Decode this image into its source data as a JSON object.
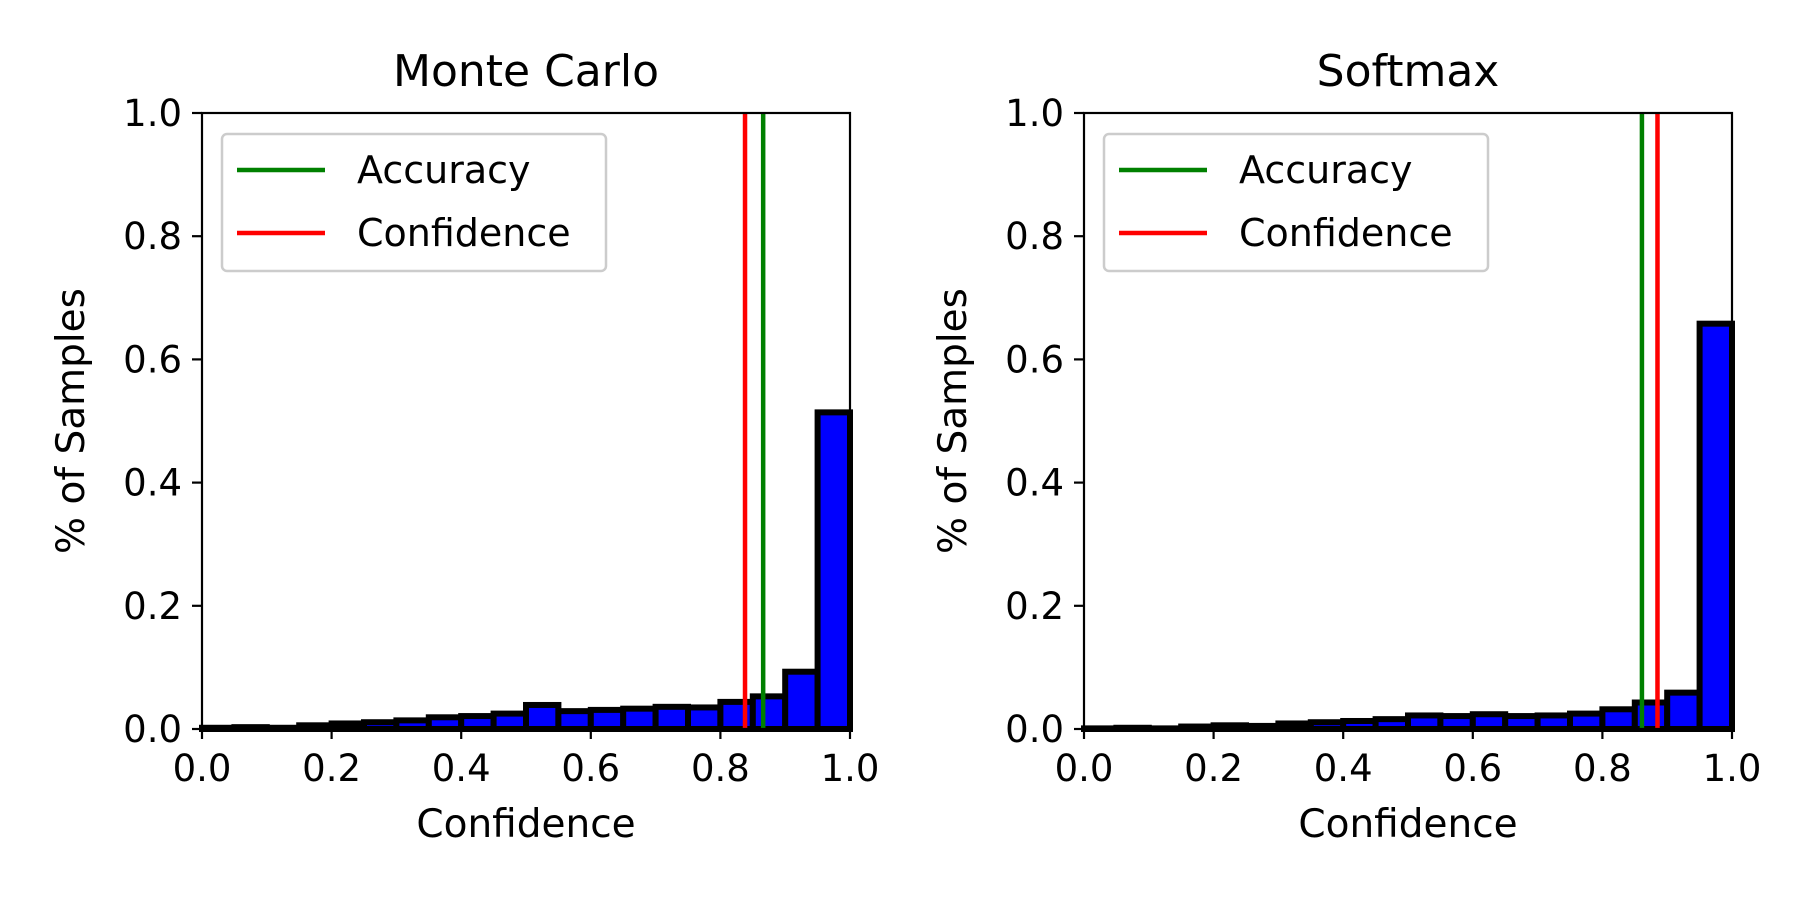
{
  "chart_data": [
    {
      "type": "bar",
      "title": "Monte Carlo",
      "xlabel": "Confidence",
      "ylabel": "% of Samples",
      "xlim": [
        0.0,
        1.0
      ],
      "ylim": [
        0.0,
        1.0
      ],
      "xticks": [
        "0.0",
        "0.2",
        "0.4",
        "0.6",
        "0.8",
        "1.0"
      ],
      "yticks": [
        "0.0",
        "0.2",
        "0.4",
        "0.6",
        "0.8",
        "1.0"
      ],
      "bin_edges": [
        0.0,
        0.05,
        0.1,
        0.15,
        0.2,
        0.25,
        0.3,
        0.35,
        0.4,
        0.45,
        0.5,
        0.55,
        0.6,
        0.65,
        0.7,
        0.75,
        0.8,
        0.85,
        0.9,
        0.95,
        1.0
      ],
      "values": [
        0.002,
        0.003,
        0.002,
        0.006,
        0.009,
        0.011,
        0.014,
        0.019,
        0.021,
        0.025,
        0.039,
        0.029,
        0.031,
        0.033,
        0.036,
        0.035,
        0.044,
        0.053,
        0.093,
        0.514
      ],
      "bar_color": "#0000ff",
      "edge_color": "#000000",
      "lines": [
        {
          "name": "Accuracy",
          "x": 0.866,
          "color": "#008000"
        },
        {
          "name": "Confidence",
          "x": 0.838,
          "color": "#ff0000"
        }
      ],
      "legend": {
        "position": "upper-left",
        "entries": [
          {
            "label": "Accuracy",
            "color": "#008000"
          },
          {
            "label": "Confidence",
            "color": "#ff0000"
          }
        ]
      },
      "grid": false
    },
    {
      "type": "bar",
      "title": "Softmax",
      "xlabel": "Confidence",
      "ylabel": "% of Samples",
      "xlim": [
        0.0,
        1.0
      ],
      "ylim": [
        0.0,
        1.0
      ],
      "xticks": [
        "0.0",
        "0.2",
        "0.4",
        "0.6",
        "0.8",
        "1.0"
      ],
      "yticks": [
        "0.0",
        "0.2",
        "0.4",
        "0.6",
        "0.8",
        "1.0"
      ],
      "bin_edges": [
        0.0,
        0.05,
        0.1,
        0.15,
        0.2,
        0.25,
        0.3,
        0.35,
        0.4,
        0.45,
        0.5,
        0.55,
        0.6,
        0.65,
        0.7,
        0.75,
        0.8,
        0.85,
        0.9,
        0.95,
        1.0
      ],
      "values": [
        0.001,
        0.002,
        0.001,
        0.004,
        0.006,
        0.005,
        0.009,
        0.011,
        0.013,
        0.016,
        0.022,
        0.021,
        0.024,
        0.021,
        0.022,
        0.025,
        0.032,
        0.043,
        0.059,
        0.658
      ],
      "bar_color": "#0000ff",
      "edge_color": "#000000",
      "lines": [
        {
          "name": "Accuracy",
          "x": 0.861,
          "color": "#008000"
        },
        {
          "name": "Confidence",
          "x": 0.885,
          "color": "#ff0000"
        }
      ],
      "legend": {
        "position": "upper-left",
        "entries": [
          {
            "label": "Accuracy",
            "color": "#008000"
          },
          {
            "label": "Confidence",
            "color": "#ff0000"
          }
        ]
      },
      "grid": false
    }
  ]
}
